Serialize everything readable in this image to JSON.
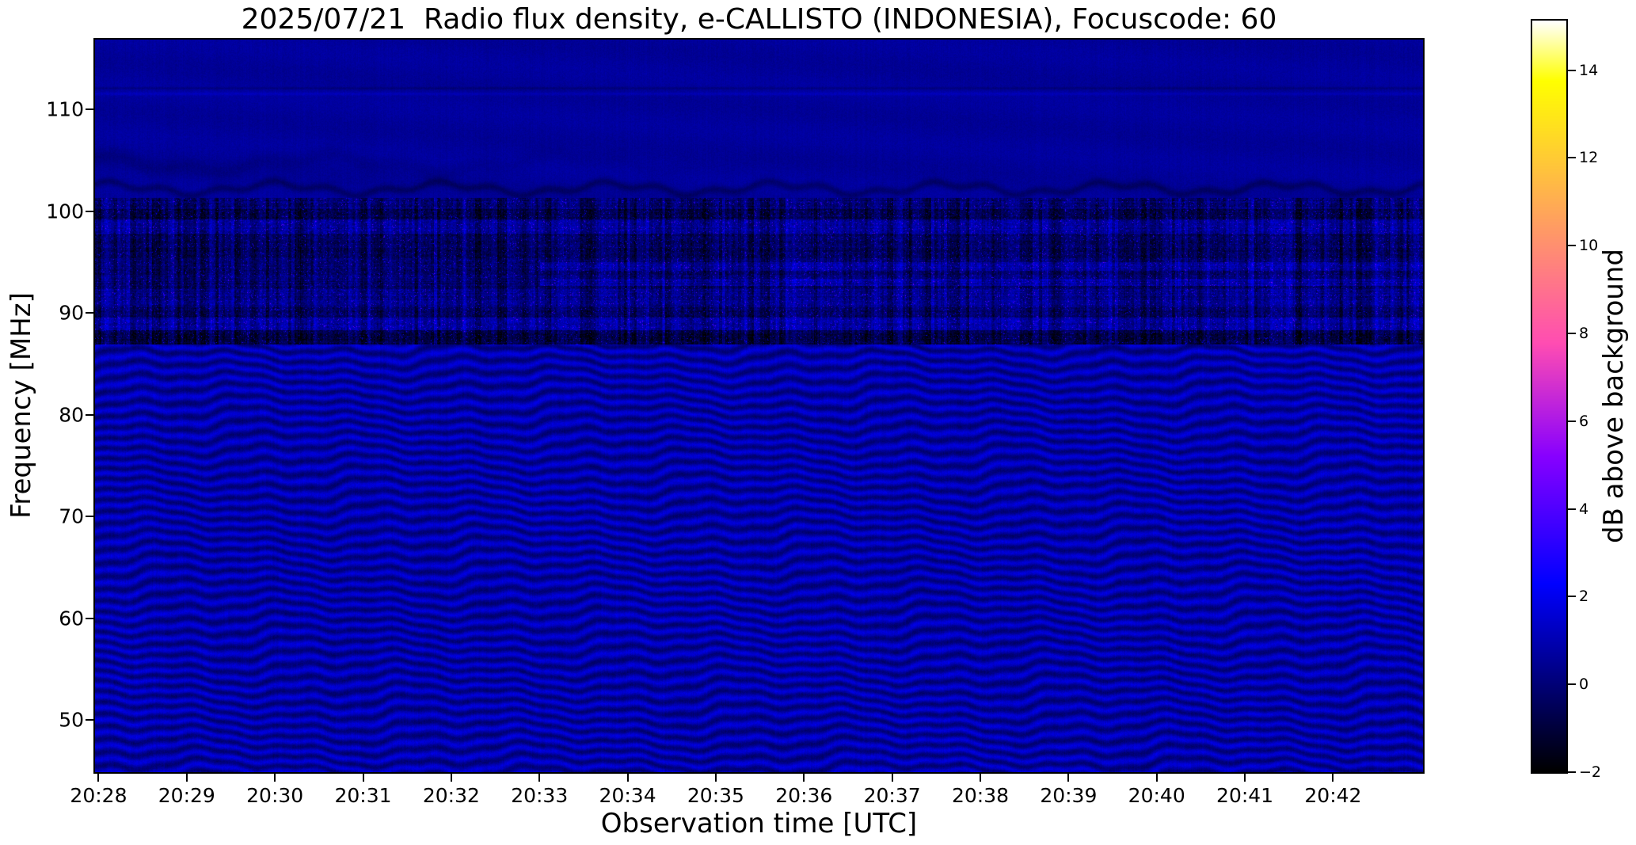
{
  "page": {
    "background": "#ffffff",
    "text_color": "#000000"
  },
  "chart_data": {
    "type": "heatmap",
    "title": "2025/07/21  Radio flux density, e-CALLISTO (INDONESIA), Focuscode: 60",
    "xlabel": "Observation time [UTC]",
    "ylabel": "Frequency [MHz]",
    "colorbar_label": "dB above background",
    "colormap": "gnuplot2",
    "grid": false,
    "x_axis": {
      "tick_labels": [
        "20:28",
        "20:29",
        "20:30",
        "20:31",
        "20:32",
        "20:33",
        "20:34",
        "20:35",
        "20:36",
        "20:37",
        "20:38",
        "20:39",
        "20:40",
        "20:41",
        "20:42"
      ],
      "tick_minutes": [
        0,
        1,
        2,
        3,
        4,
        5,
        6,
        7,
        8,
        9,
        10,
        11,
        12,
        13,
        14
      ],
      "xlim_minutes_from_2028": [
        -0.04,
        15.02
      ]
    },
    "y_axis": {
      "tick_labels": [
        "110",
        "100",
        "90",
        "80",
        "70",
        "60",
        "50"
      ],
      "tick_values": [
        110,
        100,
        90,
        80,
        70,
        60,
        50
      ],
      "ylim_mhz": [
        44.9,
        116.84
      ]
    },
    "colorbar": {
      "tick_labels": [
        "−2",
        "0",
        "2",
        "4",
        "6",
        "8",
        "10",
        "12",
        "14"
      ],
      "tick_values": [
        -2,
        0,
        2,
        4,
        6,
        8,
        10,
        12,
        14
      ],
      "vmin": -2,
      "vmax": 15.13
    },
    "spectrum_features": {
      "wavy_band": {
        "f_max_mhz": 86.9,
        "mean_db": 0.78,
        "ripple_amp_db": 0.82,
        "ripple_wavelength_mhz": 1.12,
        "drift_mhz_per_min": 0.17
      },
      "fm_band": {
        "f_min_mhz": 86.9,
        "f_max_mhz": 101.3,
        "base_db": 0.35,
        "sub_bands": [
          {
            "f0": 100.2,
            "f1": 101.3,
            "offset_db": -0.5
          },
          {
            "f0": 99.2,
            "f1": 100.2,
            "offset_db": -1.0
          },
          {
            "f0": 97.8,
            "f1": 99.2,
            "offset_db": 0.15
          },
          {
            "f0": 95.4,
            "f1": 97.8,
            "offset_db": -0.8
          },
          {
            "f0": 92.4,
            "f1": 95.4,
            "offset_db": -0.55
          },
          {
            "f0": 90.6,
            "f1": 92.4,
            "offset_db": -0.1
          },
          {
            "f0": 89.6,
            "f1": 90.6,
            "offset_db": -0.7
          },
          {
            "f0": 88.3,
            "f1": 89.6,
            "offset_db": 0.3
          },
          {
            "f0": 86.9,
            "f1": 88.3,
            "offset_db": -1.2
          }
        ],
        "speckle_prob": 0.035,
        "bright_rows_mhz": [
          [
            92.7,
            93.4
          ],
          [
            94.2,
            95.0
          ]
        ],
        "bright_rows_from_min": 5.0
      },
      "upper_band": {
        "f_min_mhz": 101.3,
        "mean_db": 0.58,
        "dark_arc_mhz": 102.25,
        "dark_arc2_mhz": 104.7,
        "dark_line_mhz": 112.1,
        "bright_line_mhz": 111.55
      }
    }
  }
}
